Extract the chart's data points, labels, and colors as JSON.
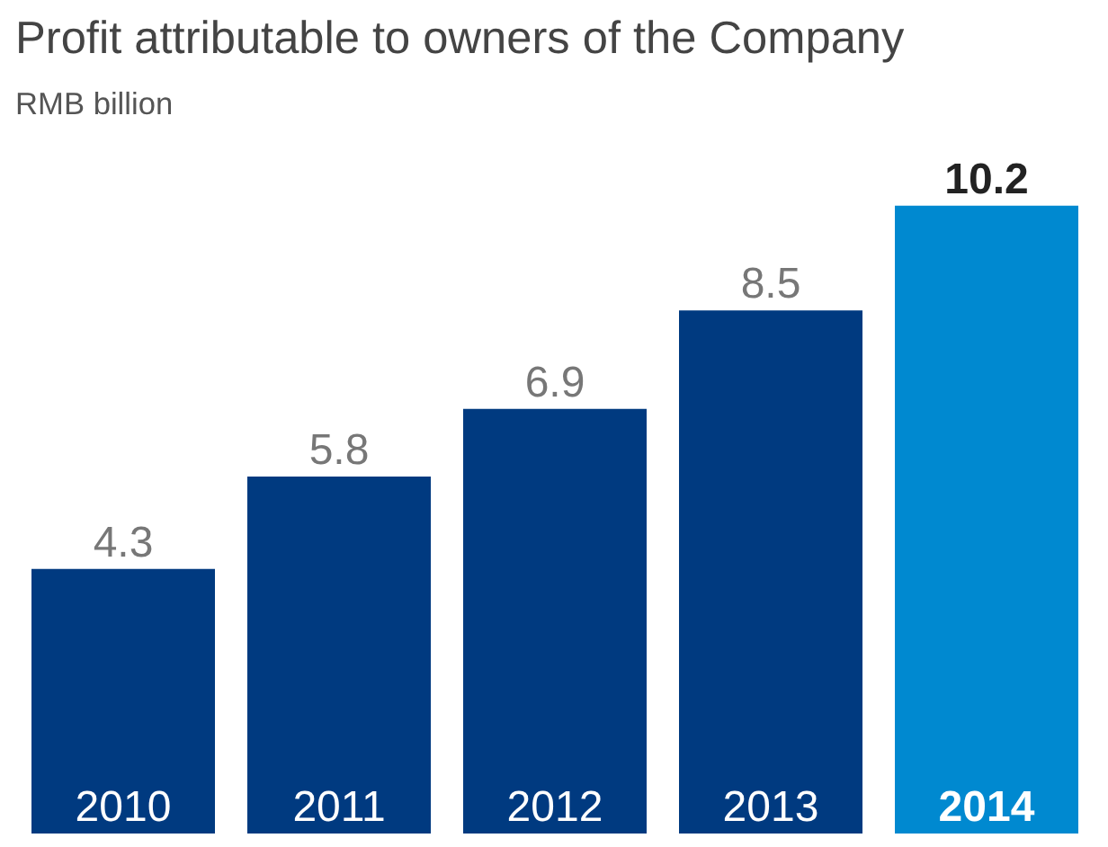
{
  "chart_data": {
    "type": "bar",
    "title": "Profit attributable to owners of the Company",
    "subtitle": "RMB billion",
    "categories": [
      "2010",
      "2011",
      "2012",
      "2013",
      "2014"
    ],
    "values": [
      4.3,
      5.8,
      6.9,
      8.5,
      10.2
    ],
    "colors": [
      "#003a80",
      "#003a80",
      "#003a80",
      "#003a80",
      "#0089d0"
    ],
    "data_labels": true,
    "grid": false
  }
}
